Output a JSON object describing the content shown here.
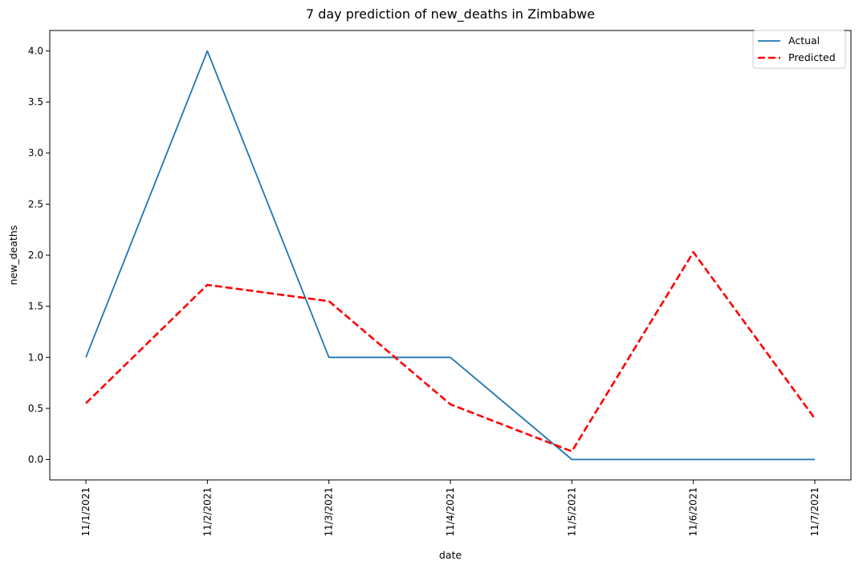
{
  "chart_data": {
    "type": "line",
    "title": "7 day prediction of new_deaths in Zimbabwe",
    "xlabel": "date",
    "ylabel": "new_deaths",
    "categories": [
      "11/1/2021",
      "11/2/2021",
      "11/3/2021",
      "11/4/2021",
      "11/5/2021",
      "11/6/2021",
      "11/7/2021"
    ],
    "yticks": [
      "0.0",
      "0.5",
      "1.0",
      "1.5",
      "2.0",
      "2.5",
      "3.0",
      "3.5",
      "4.0"
    ],
    "ylim": [
      -0.2,
      4.2
    ],
    "grid": false,
    "legend_position": "top-right",
    "series": [
      {
        "name": "Actual",
        "values": [
          1,
          4,
          1,
          1,
          0,
          0,
          0
        ],
        "color": "#1f77b4",
        "style": "solid"
      },
      {
        "name": "Predicted",
        "values": [
          0.55,
          1.71,
          1.55,
          0.54,
          0.08,
          2.03,
          0.4
        ],
        "color": "#ff0000",
        "style": "dashed"
      }
    ]
  }
}
